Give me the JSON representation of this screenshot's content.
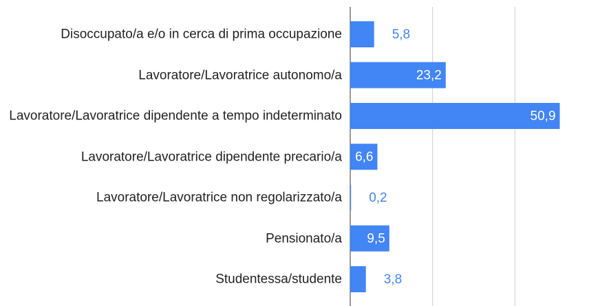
{
  "chart_data": {
    "type": "bar",
    "orientation": "horizontal",
    "categories": [
      "Disoccupato/a e/o in cerca di prima occupazione",
      "Lavoratore/Lavoratrice autonomo/a",
      "Lavoratore/Lavoratrice dipendente a tempo indeterminato",
      "Lavoratore/Lavoratrice dipendente precario/a",
      "Lavoratore/Lavoratrice non regolarizzato/a",
      "Pensionato/a",
      "Studentessa/studente"
    ],
    "values": [
      5.8,
      23.2,
      50.9,
      6.6,
      0.2,
      9.5,
      3.8
    ],
    "value_labels": [
      "5,8",
      "23,2",
      "50,9",
      "6,6",
      "0,2",
      "9,5",
      "3,8"
    ],
    "color": "#4285f4",
    "xlim": [
      0,
      58
    ],
    "xticks": [
      0,
      20,
      40
    ],
    "grid": true
  }
}
